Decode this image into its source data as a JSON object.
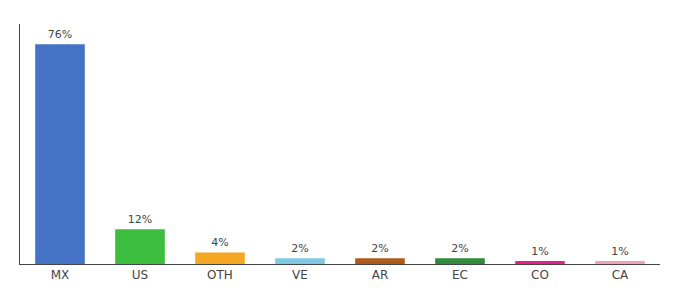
{
  "chart_data": {
    "type": "bar",
    "categories": [
      "MX",
      "US",
      "OTH",
      "VE",
      "AR",
      "EC",
      "CO",
      "CA"
    ],
    "values": [
      76,
      12,
      4,
      2,
      2,
      2,
      1,
      1
    ],
    "value_labels": [
      "76%",
      "12%",
      "4%",
      "2%",
      "2%",
      "2%",
      "1%",
      "1%"
    ],
    "colors": [
      "#4472C4",
      "#3DBD3D",
      "#F5A623",
      "#7EC8E3",
      "#B05A1A",
      "#2E8B3A",
      "#E91E8C",
      "#F4A0B5"
    ],
    "ylim": [
      0,
      83
    ],
    "data_labels": true,
    "tick_labels": "x",
    "grid": false
  }
}
